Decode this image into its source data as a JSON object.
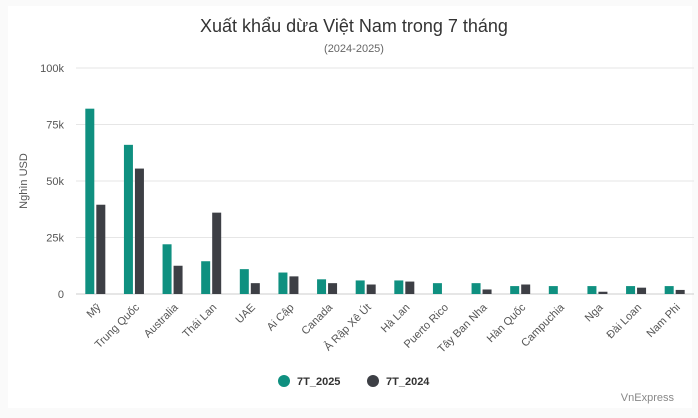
{
  "chart_data": {
    "type": "bar",
    "title": "Xuất khẩu dừa Việt Nam trong 7 tháng",
    "subtitle": "(2024-2025)",
    "ylabel": "Nghìn USD",
    "xlabel": "",
    "ylim": [
      0,
      100000
    ],
    "yticks": [
      {
        "value": 0,
        "label": "0"
      },
      {
        "value": 25000,
        "label": "25k"
      },
      {
        "value": 50000,
        "label": "50k"
      },
      {
        "value": 75000,
        "label": "75k"
      },
      {
        "value": 100000,
        "label": "100k"
      }
    ],
    "grid": true,
    "legend_position": "bottom-center",
    "categories": [
      "Mỹ",
      "Trung Quốc",
      "Australia",
      "Thái Lan",
      "UAE",
      "Ai Cập",
      "Canada",
      "Ả Rập Xê Út",
      "Hà Lan",
      "Puerto Rico",
      "Tây Ban Nha",
      "Hàn Quốc",
      "Campuchia",
      "Nga",
      "Đài Loan",
      "Nam Phi"
    ],
    "series": [
      {
        "name": "7T_2025",
        "color": "#0f9080",
        "values": [
          82000,
          66000,
          22000,
          14500,
          11000,
          9500,
          6500,
          6000,
          6000,
          4800,
          4800,
          3500,
          3500,
          3500,
          3500,
          3500
        ]
      },
      {
        "name": "7T_2024",
        "color": "#3d3f45",
        "values": [
          39500,
          55500,
          12500,
          36000,
          4800,
          7800,
          4800,
          4200,
          5500,
          0,
          2000,
          4200,
          0,
          1000,
          2800,
          1800
        ]
      }
    ]
  },
  "watermark": "VnExpress"
}
